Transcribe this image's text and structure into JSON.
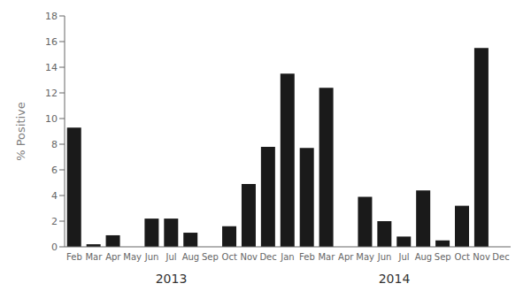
{
  "chart_data": {
    "type": "bar",
    "categories": [
      "Feb",
      "Mar",
      "Apr",
      "May",
      "Jun",
      "Jul",
      "Aug",
      "Sep",
      "Oct",
      "Nov",
      "Dec",
      "Jan",
      "Feb",
      "Mar",
      "Apr",
      "May",
      "Jun",
      "Jul",
      "Aug",
      "Sep",
      "Oct",
      "Nov",
      "Dec"
    ],
    "values": [
      9.3,
      0.2,
      0.9,
      0.0,
      2.2,
      2.2,
      1.1,
      0.0,
      1.6,
      4.9,
      7.8,
      13.5,
      7.7,
      12.4,
      0.0,
      3.9,
      2.0,
      0.8,
      4.4,
      0.5,
      3.2,
      15.5,
      0.0
    ],
    "color": "#1a1a1a",
    "ylabel": "% Positive",
    "ylim": [
      0,
      18
    ],
    "yticks": [
      0,
      2,
      4,
      6,
      8,
      10,
      12,
      14,
      16,
      18
    ],
    "grid": false,
    "annotations": [
      {
        "text": "2013",
        "x": 5
      },
      {
        "text": "2014",
        "x": 16.5
      }
    ]
  }
}
